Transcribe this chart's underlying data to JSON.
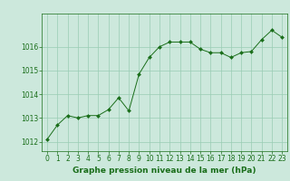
{
  "x": [
    0,
    1,
    2,
    3,
    4,
    5,
    6,
    7,
    8,
    9,
    10,
    11,
    12,
    13,
    14,
    15,
    16,
    17,
    18,
    19,
    20,
    21,
    22,
    23
  ],
  "y": [
    1012.1,
    1012.7,
    1013.1,
    1013.0,
    1013.1,
    1013.1,
    1013.35,
    1013.85,
    1013.3,
    1014.85,
    1015.55,
    1016.0,
    1016.2,
    1016.2,
    1016.2,
    1015.9,
    1015.75,
    1015.75,
    1015.55,
    1015.75,
    1015.8,
    1016.3,
    1016.7,
    1016.4
  ],
  "line_color": "#1a6e1a",
  "marker": "D",
  "marker_size": 2.0,
  "bg_color": "#cce8dc",
  "grid_color": "#99ccb3",
  "title": "Graphe pression niveau de la mer (hPa)",
  "ylim": [
    1011.6,
    1017.4
  ],
  "yticks": [
    1012,
    1013,
    1014,
    1015,
    1016
  ],
  "xlim": [
    -0.5,
    23.5
  ],
  "xticks": [
    0,
    1,
    2,
    3,
    4,
    5,
    6,
    7,
    8,
    9,
    10,
    11,
    12,
    13,
    14,
    15,
    16,
    17,
    18,
    19,
    20,
    21,
    22,
    23
  ],
  "tick_fontsize": 5.5,
  "title_fontsize": 6.5,
  "linewidth": 0.7
}
